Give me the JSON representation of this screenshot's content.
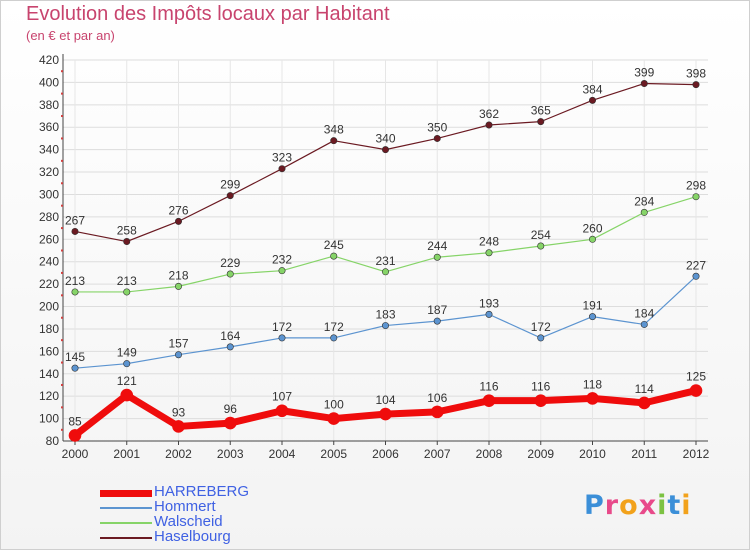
{
  "header": {
    "title": "Evolution des Impôts locaux par Habitant",
    "subtitle": "(en € et par an)"
  },
  "logo": {
    "text": "Proxiti",
    "letters": [
      {
        "ch": "P",
        "color": "#3b8fd8"
      },
      {
        "ch": "r",
        "color": "#e84a8a"
      },
      {
        "ch": "o",
        "color": "#f2a21b"
      },
      {
        "ch": "x",
        "color": "#e84a8a"
      },
      {
        "ch": "i",
        "color": "#7cc242"
      },
      {
        "ch": "t",
        "color": "#3b8fd8"
      },
      {
        "ch": "i",
        "color": "#f2a21b"
      }
    ]
  },
  "chart_data": {
    "type": "line",
    "x": [
      2000,
      2001,
      2002,
      2003,
      2004,
      2005,
      2006,
      2007,
      2008,
      2009,
      2010,
      2011,
      2012
    ],
    "ylim": [
      80,
      420
    ],
    "yticks": [
      80,
      100,
      120,
      140,
      160,
      180,
      200,
      220,
      240,
      260,
      280,
      300,
      320,
      340,
      360,
      380,
      400,
      420
    ],
    "grid": true,
    "legend_position": "bottom-left",
    "series": [
      {
        "name": "Haselbourg",
        "color": "#6b1a22",
        "width": 1.2,
        "marker_r": 3.2,
        "values": [
          267,
          258,
          276,
          299,
          323,
          348,
          340,
          350,
          362,
          365,
          384,
          399,
          398
        ]
      },
      {
        "name": "Walscheid",
        "color": "#86d468",
        "width": 1.2,
        "marker_r": 3.2,
        "values": [
          213,
          213,
          218,
          229,
          232,
          245,
          231,
          244,
          248,
          254,
          260,
          284,
          298
        ]
      },
      {
        "name": "Hommert",
        "color": "#5c94d0",
        "width": 1.2,
        "marker_r": 3.2,
        "values": [
          145,
          149,
          157,
          164,
          172,
          172,
          183,
          187,
          193,
          172,
          191,
          184,
          227
        ]
      },
      {
        "name": "HARREBERG",
        "color": "#ef0c0c",
        "width": 7,
        "marker_r": 6,
        "values": [
          85,
          121,
          93,
          96,
          107,
          100,
          104,
          106,
          116,
          116,
          118,
          114,
          125
        ]
      }
    ],
    "legend_order": [
      "HARREBERG",
      "Hommert",
      "Walscheid",
      "Haselbourg"
    ]
  }
}
